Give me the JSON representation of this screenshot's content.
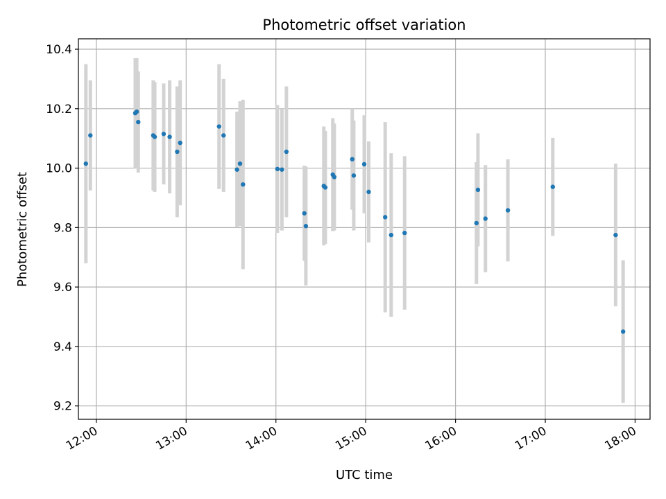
{
  "chart_data": {
    "type": "scatter",
    "title": "Photometric offset variation",
    "xlabel": "UTC time",
    "ylabel": "Photometric offset",
    "x_unit": "HH:MM UTC",
    "xlim": [
      "11:48",
      "18:10"
    ],
    "ylim": [
      9.155,
      10.435
    ],
    "xticks": [
      "12:00",
      "13:00",
      "14:00",
      "15:00",
      "16:00",
      "17:00",
      "18:00"
    ],
    "yticks": [
      "9.2",
      "9.4",
      "9.6",
      "9.8",
      "10.0",
      "10.2",
      "10.4"
    ],
    "grid": true,
    "marker_color": "#1f77b4",
    "errorbar_color": "#d3d3d3",
    "points": [
      {
        "x": "11:53",
        "y": 10.015,
        "err": 0.335
      },
      {
        "x": "11:56",
        "y": 10.11,
        "err": 0.185
      },
      {
        "x": "12:26",
        "y": 10.185,
        "err": 0.185
      },
      {
        "x": "12:27",
        "y": 10.19,
        "err": 0.18
      },
      {
        "x": "12:28",
        "y": 10.155,
        "err": 0.17
      },
      {
        "x": "12:38",
        "y": 10.11,
        "err": 0.185
      },
      {
        "x": "12:39",
        "y": 10.105,
        "err": 0.185
      },
      {
        "x": "12:45",
        "y": 10.115,
        "err": 0.17
      },
      {
        "x": "12:49",
        "y": 10.105,
        "err": 0.19
      },
      {
        "x": "12:54",
        "y": 10.055,
        "err": 0.22
      },
      {
        "x": "12:56",
        "y": 10.085,
        "err": 0.21
      },
      {
        "x": "13:22",
        "y": 10.14,
        "err": 0.21
      },
      {
        "x": "13:25",
        "y": 10.11,
        "err": 0.19
      },
      {
        "x": "13:34",
        "y": 9.995,
        "err": 0.195
      },
      {
        "x": "13:36",
        "y": 10.015,
        "err": 0.21
      },
      {
        "x": "13:38",
        "y": 9.945,
        "err": 0.285
      },
      {
        "x": "14:01",
        "y": 9.997,
        "err": 0.215
      },
      {
        "x": "14:04",
        "y": 9.995,
        "err": 0.205
      },
      {
        "x": "14:07",
        "y": 10.055,
        "err": 0.22
      },
      {
        "x": "14:19",
        "y": 9.848,
        "err": 0.16
      },
      {
        "x": "14:20",
        "y": 9.805,
        "err": 0.2
      },
      {
        "x": "14:32",
        "y": 9.94,
        "err": 0.2
      },
      {
        "x": "14:33",
        "y": 9.935,
        "err": 0.19
      },
      {
        "x": "14:38",
        "y": 9.978,
        "err": 0.19
      },
      {
        "x": "14:39",
        "y": 9.97,
        "err": 0.18
      },
      {
        "x": "14:51",
        "y": 10.03,
        "err": 0.17
      },
      {
        "x": "14:52",
        "y": 9.975,
        "err": 0.185
      },
      {
        "x": "14:59",
        "y": 10.013,
        "err": 0.165
      },
      {
        "x": "15:02",
        "y": 9.92,
        "err": 0.17
      },
      {
        "x": "15:13",
        "y": 9.835,
        "err": 0.32
      },
      {
        "x": "15:17",
        "y": 9.775,
        "err": 0.275
      },
      {
        "x": "15:26",
        "y": 9.782,
        "err": 0.258
      },
      {
        "x": "16:14",
        "y": 9.815,
        "err": 0.205
      },
      {
        "x": "16:15",
        "y": 9.927,
        "err": 0.19
      },
      {
        "x": "16:20",
        "y": 9.83,
        "err": 0.18
      },
      {
        "x": "16:35",
        "y": 9.858,
        "err": 0.172
      },
      {
        "x": "17:05",
        "y": 9.937,
        "err": 0.165
      },
      {
        "x": "17:47",
        "y": 9.775,
        "err": 0.24
      },
      {
        "x": "17:52",
        "y": 9.45,
        "err": 0.24
      }
    ]
  }
}
